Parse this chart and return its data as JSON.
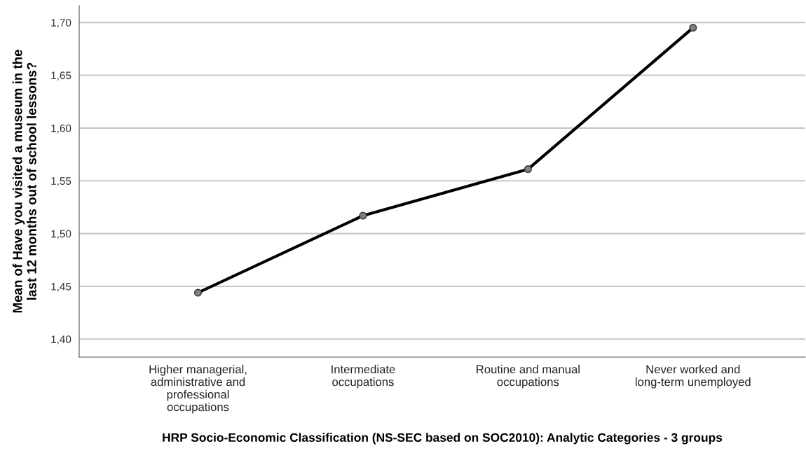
{
  "chart_data": {
    "type": "line",
    "xlabel": "HRP Socio-Economic Classification (NS-SEC based on SOC2010): Analytic Categories - 3 groups",
    "ylabel": "Mean of Have you visited a museum in the\nlast 12 months out of school lessons?",
    "categories": [
      "Higher managerial,\nadministrative and\nprofessional\noccupations",
      "Intermediate\noccupations",
      "Routine and manual\noccupations",
      "Never worked and\nlong-term unemployed"
    ],
    "series": [
      {
        "color": "#000000",
        "values": [
          1.444,
          1.517,
          1.561,
          1.695
        ]
      }
    ],
    "ylim": [
      1.383,
      1.716
    ],
    "yticks": [
      {
        "value": 1.4,
        "label": "1,40"
      },
      {
        "value": 1.45,
        "label": "1,45"
      },
      {
        "value": 1.5,
        "label": "1,50"
      },
      {
        "value": 1.55,
        "label": "1,55"
      },
      {
        "value": 1.6,
        "label": "1,60"
      },
      {
        "value": 1.65,
        "label": "1,65"
      },
      {
        "value": 1.7,
        "label": "1,70"
      }
    ],
    "grid": "y",
    "legend": false,
    "marker": "circle",
    "line_style": "solid"
  }
}
